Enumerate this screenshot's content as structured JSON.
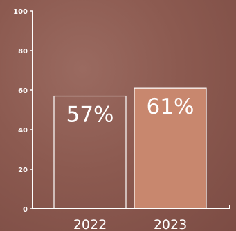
{
  "chart_data": {
    "type": "bar",
    "categories": [
      "2022",
      "2023"
    ],
    "values": [
      57,
      61
    ],
    "data_labels": [
      "57%",
      "61%"
    ],
    "ylim": [
      0,
      100
    ],
    "yticks": [
      0,
      20,
      40,
      60,
      80,
      100
    ],
    "ytick_labels": [
      "0",
      "20",
      "40",
      "60",
      "80",
      "100"
    ],
    "grid": false,
    "bar_styles": [
      {
        "fill": "none",
        "stroke": "#ffffff"
      },
      {
        "fill": "#c8876e",
        "stroke": "#ffffff"
      }
    ],
    "colors": {
      "background": "#8c5a50",
      "axis": "#ffffff",
      "text": "#ffffff"
    }
  }
}
